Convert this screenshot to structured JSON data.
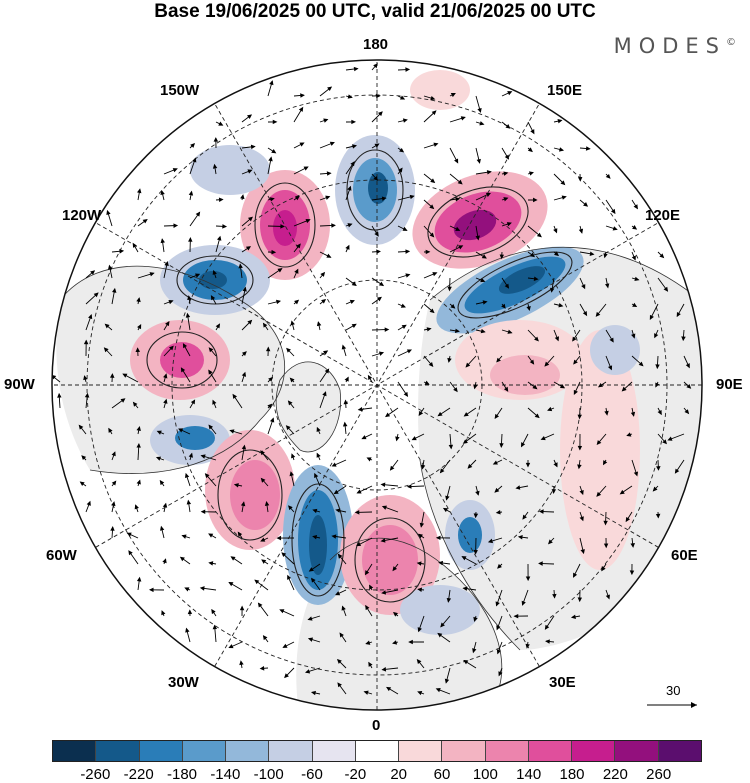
{
  "title": "Base 19/06/2025 00 UTC, valid 21/06/2025 00 UTC",
  "brand": "MODES",
  "brand_mark": "©",
  "longitude_labels": {
    "n180": "180",
    "w150": "150W",
    "e150": "150E",
    "w120": "120W",
    "e120": "120E",
    "w90": "90W",
    "e90": "90E",
    "w60": "60W",
    "e60": "60E",
    "w30": "30W",
    "e30": "30E",
    "s0": "0"
  },
  "reference_vector_label": "30",
  "colorbar": {
    "colors": [
      "#0b2f4f",
      "#14598a",
      "#2a7db8",
      "#5a9bcb",
      "#93b8da",
      "#c5cfe4",
      "#e6e4f0",
      "#ffffff",
      "#f9d9da",
      "#f3b4c2",
      "#ec84ad",
      "#e04f9c",
      "#c61e8e",
      "#93107d",
      "#5b0e6e"
    ],
    "tick_labels": [
      "-260",
      "-220",
      "-180",
      "-140",
      "-100",
      "-60",
      "-20",
      "20",
      "60",
      "100",
      "140",
      "180",
      "220",
      "260"
    ]
  }
}
